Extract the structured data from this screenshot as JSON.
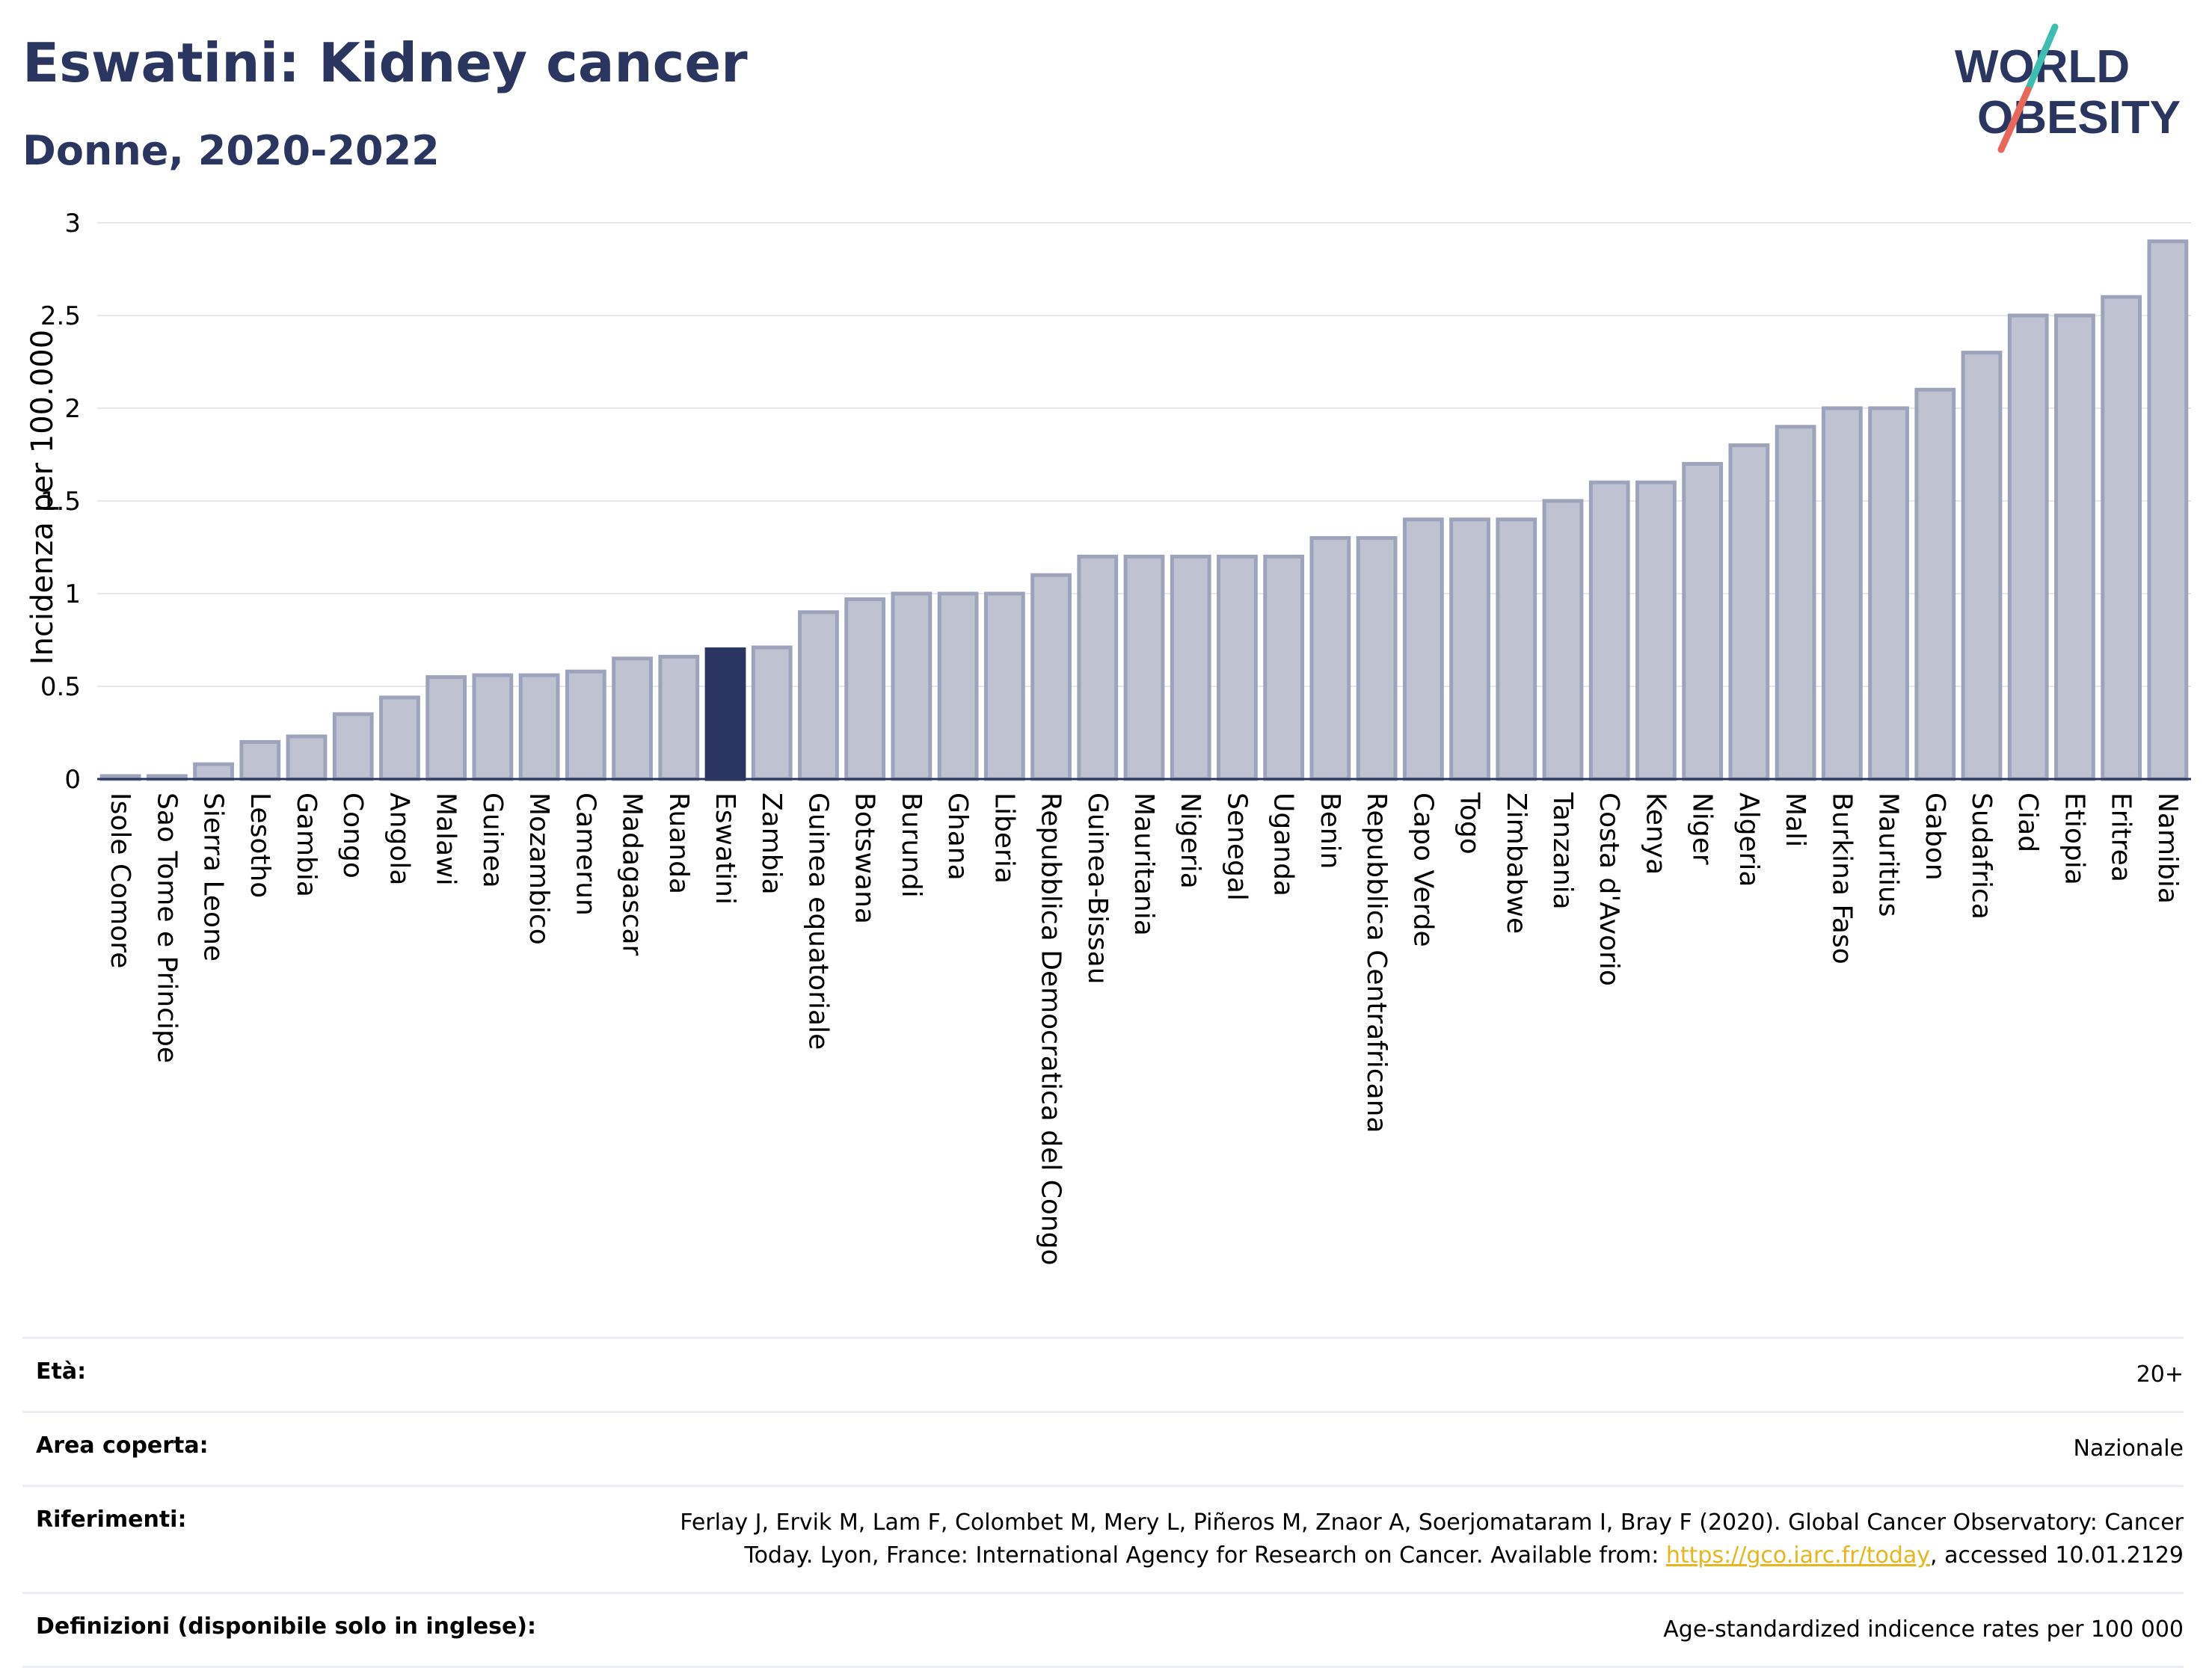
{
  "header": {
    "title": "Eswatini: Kidney cancer",
    "subtitle": "Donne, 2020-2022",
    "logo": {
      "line1": "WORLD",
      "line2": "OBESITY"
    }
  },
  "colors": {
    "bar": "#bfc3d1",
    "bar_border": "#9da3ba",
    "highlight": "#2b3561",
    "title": "#2a3560",
    "link": "#e8b51c"
  },
  "chart_data": {
    "type": "bar",
    "ylabel": "Incidenza per 100.000",
    "ylim": [
      0,
      3
    ],
    "yticks": [
      "0",
      "0.5",
      "1",
      "1.5",
      "2",
      "2.5",
      "3"
    ],
    "grid": true,
    "highlight": "Eswatini",
    "categories": [
      "Isole Comore",
      "Sao Tome e Principe",
      "Sierra Leone",
      "Lesotho",
      "Gambia",
      "Congo",
      "Angola",
      "Malawi",
      "Guinea",
      "Mozambico",
      "Camerun",
      "Madagascar",
      "Ruanda",
      "Eswatini",
      "Zambia",
      "Guinea equatoriale",
      "Botswana",
      "Burundi",
      "Ghana",
      "Liberia",
      "Repubblica Democratica del Congo",
      "Guinea-Bissau",
      "Mauritania",
      "Nigeria",
      "Senegal",
      "Uganda",
      "Benin",
      "Repubblica Centrafricana",
      "Capo Verde",
      "Togo",
      "Zimbabwe",
      "Tanzania",
      "Costa d'Avorio",
      "Kenya",
      "Niger",
      "Algeria",
      "Mali",
      "Burkina Faso",
      "Mauritius",
      "Gabon",
      "Sudafrica",
      "Ciad",
      "Etiopia",
      "Eritrea",
      "Namibia"
    ],
    "values": [
      0.01,
      0.01,
      0.08,
      0.2,
      0.23,
      0.35,
      0.44,
      0.55,
      0.56,
      0.56,
      0.58,
      0.65,
      0.66,
      0.7,
      0.71,
      0.9,
      0.97,
      1.0,
      1.0,
      1.0,
      1.1,
      1.2,
      1.2,
      1.2,
      1.2,
      1.2,
      1.3,
      1.3,
      1.4,
      1.4,
      1.4,
      1.5,
      1.6,
      1.6,
      1.7,
      1.8,
      1.9,
      2.0,
      2.0,
      2.1,
      2.3,
      2.5,
      2.5,
      2.6,
      2.9
    ]
  },
  "info": {
    "age_label": "Età:",
    "age_value": "20+",
    "area_label": "Area coperta:",
    "area_value": "Nazionale",
    "ref_label": "Riferimenti:",
    "ref_line1": "Ferlay J, Ervik M, Lam F, Colombet M, Mery L, Piñeros M, Znaor A, Soerjomataram I, Bray F (2020). Global Cancer Observatory: Cancer",
    "ref_line2_pre": "Today. Lyon, France: International Agency for Research on Cancer. Available from: ",
    "ref_link": "https://gco.iarc.fr/today",
    "ref_line2_post": ", accessed 10.01.2129",
    "def_label": "Definizioni (disponibile solo in inglese):",
    "def_value": "Age-standardized indicence rates per 100 000"
  }
}
